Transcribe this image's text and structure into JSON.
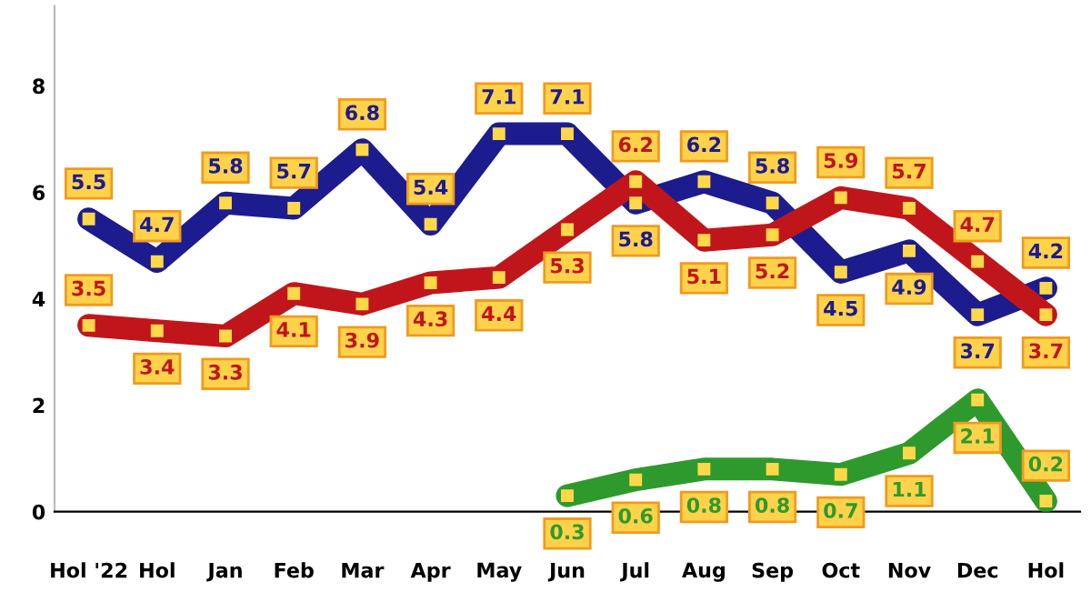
{
  "chart_data": {
    "type": "line",
    "categories": [
      "Hol '22",
      "Hol",
      "Jan",
      "Feb",
      "Mar",
      "Apr",
      "May",
      "Jun",
      "Jul",
      "Aug",
      "Sep",
      "Oct",
      "Nov",
      "Dec",
      "Hol"
    ],
    "series": [
      {
        "color": "#1c1c8f",
        "values": [
          5.5,
          4.7,
          5.8,
          5.7,
          6.8,
          5.4,
          7.1,
          7.1,
          5.8,
          6.2,
          5.8,
          4.5,
          4.9,
          3.7,
          4.2
        ]
      },
      {
        "color": "#c0161b",
        "values": [
          3.5,
          3.4,
          3.3,
          4.1,
          3.9,
          4.3,
          4.4,
          5.3,
          6.2,
          5.1,
          5.2,
          5.9,
          5.7,
          4.7,
          3.7
        ]
      },
      {
        "color": "#2e9a2e",
        "values": [
          null,
          null,
          null,
          null,
          null,
          null,
          null,
          0.3,
          0.6,
          0.8,
          0.8,
          0.7,
          1.1,
          2.1,
          0.2
        ]
      }
    ],
    "ylim": [
      0,
      9.5
    ],
    "yticks": [
      0,
      2,
      4,
      6,
      8
    ],
    "grid": false,
    "marker": "square",
    "line_style": "solid",
    "data_labels": true
  }
}
